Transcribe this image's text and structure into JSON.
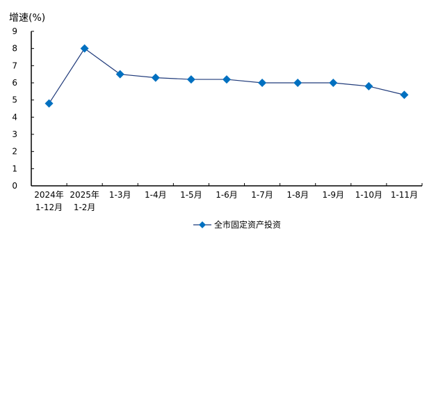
{
  "chart_data": {
    "type": "line",
    "title": "",
    "ylabel": "增速(%)",
    "xlabel": "",
    "ylim": [
      0,
      9
    ],
    "yticks": [
      0,
      1,
      2,
      3,
      4,
      5,
      6,
      7,
      8,
      9
    ],
    "grid": false,
    "legend_position": "bottom",
    "categories": [
      [
        "2024年",
        "1-12月"
      ],
      [
        "2025年",
        "1-2月"
      ],
      [
        "1-3月"
      ],
      [
        "1-4月"
      ],
      [
        "1-5月"
      ],
      [
        "1-6月"
      ],
      [
        "1-7月"
      ],
      [
        "1-8月"
      ],
      [
        "1-9月"
      ],
      [
        "1-10月"
      ],
      [
        "1-11月"
      ]
    ],
    "series": [
      {
        "name": "全市固定资产投资",
        "values": [
          4.8,
          8.0,
          6.5,
          6.3,
          6.2,
          6.2,
          6.0,
          6.0,
          6.0,
          5.8,
          5.3
        ],
        "line_color": "#1f3a7a",
        "marker": "diamond",
        "marker_color": "#0070c0"
      }
    ]
  },
  "legend": {
    "label": "全市固定资产投资"
  }
}
